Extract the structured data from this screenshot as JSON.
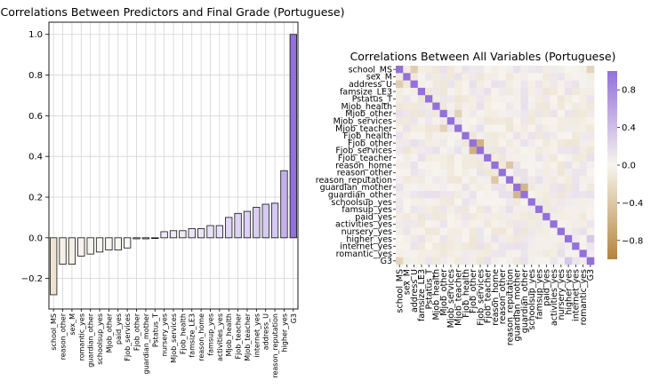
{
  "chart_data": [
    {
      "type": "bar",
      "title": "Correlations Between Predictors and Final Grade (Portuguese)",
      "xlabel": "",
      "ylabel": "",
      "ylim": [
        -0.35,
        1.06
      ],
      "yticks": [
        -0.2,
        0.0,
        0.2,
        0.4,
        0.6,
        0.8,
        1.0
      ],
      "ytick_labels": [
        "−0.2",
        "0.0",
        "0.2",
        "0.4",
        "0.6",
        "0.8",
        "1.0"
      ],
      "grid": true,
      "categories": [
        "school_MS",
        "reason_other",
        "sex_M",
        "romantic_yes",
        "guardian_other",
        "schoolsup_yes",
        "Mjob_other",
        "paid_yes",
        "Fjob_services",
        "Fjob_other",
        "guardian_mother",
        "Pstatus_T",
        "nursery_yes",
        "Mjob_services",
        "Fjob_health",
        "famsize_LE3",
        "reason_home",
        "famsup_yes",
        "activities_yes",
        "Mjob_health",
        "Fjob_teacher",
        "Mjob_teacher",
        "internet_yes",
        "address_U",
        "reason_reputation",
        "higher_yes",
        "G3"
      ],
      "values": [
        -0.28,
        -0.13,
        -0.13,
        -0.09,
        -0.08,
        -0.07,
        -0.06,
        -0.06,
        -0.05,
        -0.005,
        -0.005,
        -0.003,
        0.03,
        0.035,
        0.035,
        0.045,
        0.045,
        0.06,
        0.06,
        0.1,
        0.12,
        0.13,
        0.15,
        0.165,
        0.17,
        0.33,
        1.0
      ]
    },
    {
      "type": "heatmap",
      "title": "Correlations Between All Variables (Portuguese)",
      "labels": [
        "school_MS",
        "sex_M",
        "address_U",
        "famsize_LE3",
        "Pstatus_T",
        "Mjob_health",
        "Mjob_other",
        "Mjob_services",
        "Mjob_teacher",
        "Fjob_health",
        "Fjob_other",
        "Fjob_services",
        "Fjob_teacher",
        "reason_home",
        "reason_other",
        "reason_reputation",
        "guardian_mother",
        "guardian_other",
        "schoolsup_yes",
        "famsup_yes",
        "paid_yes",
        "activities_yes",
        "nursery_yes",
        "higher_yes",
        "internet_yes",
        "romantic_yes",
        "G3"
      ],
      "vmin": -1.0,
      "vmax": 1.0,
      "colorbar_ticks": [
        0.8,
        0.4,
        0.0,
        -0.4,
        -0.8
      ],
      "colorbar_tick_labels": [
        "0.8",
        "0.4",
        "0.0",
        "−0.4",
        "−0.8"
      ],
      "colors": {
        "negative": "#b5843c",
        "neutral": "#f7f4ee",
        "positive": "#9370db"
      },
      "notable_values": [
        {
          "row": "school_MS",
          "col": "address_U",
          "value": -0.35
        },
        {
          "row": "Mjob_other",
          "col": "Mjob_teacher",
          "value": -0.3
        },
        {
          "row": "Fjob_other",
          "col": "Fjob_services",
          "value": -0.6
        },
        {
          "row": "guardian_mother",
          "col": "guardian_other",
          "value": -0.55
        },
        {
          "row": "reason_home",
          "col": "reason_reputation",
          "value": -0.4
        },
        {
          "row": "higher_yes",
          "col": "G3",
          "value": 0.33
        },
        {
          "row": "school_MS",
          "col": "G3",
          "value": -0.28
        }
      ]
    }
  ]
}
